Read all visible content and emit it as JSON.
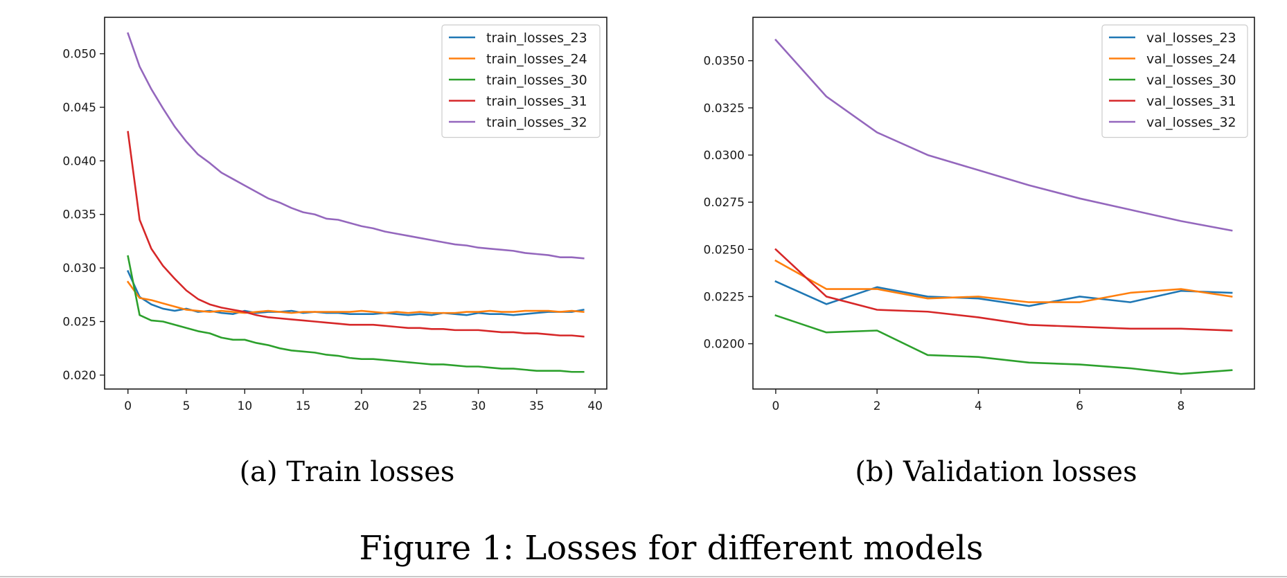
{
  "figure": {
    "caption": "Figure 1: Losses for different models"
  },
  "chart_data": [
    {
      "type": "line",
      "caption": "(a) Train losses",
      "title": "",
      "xlabel": "",
      "ylabel": "",
      "xlim": [
        -2,
        41
      ],
      "ylim": [
        0.0187,
        0.0534
      ],
      "xticks": [
        0,
        5,
        10,
        15,
        20,
        25,
        30,
        35,
        40
      ],
      "xtick_labels": [
        "0",
        "5",
        "10",
        "15",
        "20",
        "25",
        "30",
        "35",
        "40"
      ],
      "yticks": [
        0.02,
        0.025,
        0.03,
        0.035,
        0.04,
        0.045,
        0.05
      ],
      "ytick_labels": [
        "0.020",
        "0.025",
        "0.030",
        "0.035",
        "0.040",
        "0.045",
        "0.050"
      ],
      "grid": false,
      "legend": "top-right",
      "x": [
        0,
        1,
        2,
        3,
        4,
        5,
        6,
        7,
        8,
        9,
        10,
        11,
        12,
        13,
        14,
        15,
        16,
        17,
        18,
        19,
        20,
        21,
        22,
        23,
        24,
        25,
        26,
        27,
        28,
        29,
        30,
        31,
        32,
        33,
        34,
        35,
        36,
        37,
        38,
        39
      ],
      "series": [
        {
          "name": "train_losses_23",
          "color": "#1f77b4",
          "values": [
            0.0297,
            0.0273,
            0.0266,
            0.0262,
            0.026,
            0.0262,
            0.0259,
            0.026,
            0.0258,
            0.0257,
            0.026,
            0.0258,
            0.0259,
            0.0259,
            0.026,
            0.0258,
            0.0259,
            0.0258,
            0.0258,
            0.0257,
            0.0257,
            0.0257,
            0.0258,
            0.0257,
            0.0256,
            0.0257,
            0.0256,
            0.0258,
            0.0257,
            0.0256,
            0.0258,
            0.0257,
            0.0257,
            0.0256,
            0.0257,
            0.0258,
            0.0259,
            0.0259,
            0.0259,
            0.0261
          ]
        },
        {
          "name": "train_losses_24",
          "color": "#ff7f0e",
          "values": [
            0.0287,
            0.0272,
            0.027,
            0.0267,
            0.0264,
            0.0261,
            0.026,
            0.0259,
            0.026,
            0.0259,
            0.0258,
            0.0259,
            0.026,
            0.0259,
            0.0258,
            0.0259,
            0.0259,
            0.0259,
            0.0259,
            0.0259,
            0.026,
            0.0259,
            0.0258,
            0.0259,
            0.0258,
            0.0259,
            0.0258,
            0.0258,
            0.0258,
            0.0259,
            0.0259,
            0.026,
            0.0259,
            0.0259,
            0.026,
            0.026,
            0.026,
            0.0259,
            0.026,
            0.0259
          ]
        },
        {
          "name": "train_losses_30",
          "color": "#2ca02c",
          "values": [
            0.0311,
            0.0256,
            0.0251,
            0.025,
            0.0247,
            0.0244,
            0.0241,
            0.0239,
            0.0235,
            0.0233,
            0.0233,
            0.023,
            0.0228,
            0.0225,
            0.0223,
            0.0222,
            0.0221,
            0.0219,
            0.0218,
            0.0216,
            0.0215,
            0.0215,
            0.0214,
            0.0213,
            0.0212,
            0.0211,
            0.021,
            0.021,
            0.0209,
            0.0208,
            0.0208,
            0.0207,
            0.0206,
            0.0206,
            0.0205,
            0.0204,
            0.0204,
            0.0204,
            0.0203,
            0.0203
          ]
        },
        {
          "name": "train_losses_31",
          "color": "#d62728",
          "values": [
            0.0427,
            0.0345,
            0.0318,
            0.0302,
            0.029,
            0.0279,
            0.0271,
            0.0266,
            0.0263,
            0.0261,
            0.0259,
            0.0256,
            0.0254,
            0.0253,
            0.0252,
            0.0251,
            0.025,
            0.0249,
            0.0248,
            0.0247,
            0.0247,
            0.0247,
            0.0246,
            0.0245,
            0.0244,
            0.0244,
            0.0243,
            0.0243,
            0.0242,
            0.0242,
            0.0242,
            0.0241,
            0.024,
            0.024,
            0.0239,
            0.0239,
            0.0238,
            0.0237,
            0.0237,
            0.0236
          ]
        },
        {
          "name": "train_losses_32",
          "color": "#9467bd",
          "values": [
            0.0519,
            0.0488,
            0.0467,
            0.0449,
            0.0432,
            0.0418,
            0.0406,
            0.0398,
            0.0389,
            0.0383,
            0.0377,
            0.0371,
            0.0365,
            0.0361,
            0.0356,
            0.0352,
            0.035,
            0.0346,
            0.0345,
            0.0342,
            0.0339,
            0.0337,
            0.0334,
            0.0332,
            0.033,
            0.0328,
            0.0326,
            0.0324,
            0.0322,
            0.0321,
            0.0319,
            0.0318,
            0.0317,
            0.0316,
            0.0314,
            0.0313,
            0.0312,
            0.031,
            0.031,
            0.0309
          ]
        }
      ]
    },
    {
      "type": "line",
      "caption": "(b) Validation losses",
      "title": "",
      "xlabel": "",
      "ylabel": "",
      "xlim": [
        -0.45,
        9.45
      ],
      "ylim": [
        0.0176,
        0.0373
      ],
      "xticks": [
        0,
        2,
        4,
        6,
        8
      ],
      "xtick_labels": [
        "0",
        "2",
        "4",
        "6",
        "8"
      ],
      "yticks": [
        0.02,
        0.0225,
        0.025,
        0.0275,
        0.03,
        0.0325,
        0.035
      ],
      "ytick_labels": [
        "0.0200",
        "0.0225",
        "0.0250",
        "0.0275",
        "0.0300",
        "0.0325",
        "0.0350"
      ],
      "grid": false,
      "legend": "top-right",
      "x": [
        0,
        1,
        2,
        3,
        4,
        5,
        6,
        7,
        8,
        9
      ],
      "series": [
        {
          "name": "val_losses_23",
          "color": "#1f77b4",
          "values": [
            0.0233,
            0.0221,
            0.023,
            0.0225,
            0.0224,
            0.022,
            0.0225,
            0.0222,
            0.0228,
            0.0227
          ]
        },
        {
          "name": "val_losses_24",
          "color": "#ff7f0e",
          "values": [
            0.0244,
            0.0229,
            0.0229,
            0.0224,
            0.0225,
            0.0222,
            0.0222,
            0.0227,
            0.0229,
            0.0225
          ]
        },
        {
          "name": "val_losses_30",
          "color": "#2ca02c",
          "values": [
            0.0215,
            0.0206,
            0.0207,
            0.0194,
            0.0193,
            0.019,
            0.0189,
            0.0187,
            0.0184,
            0.0186
          ]
        },
        {
          "name": "val_losses_31",
          "color": "#d62728",
          "values": [
            0.025,
            0.0225,
            0.0218,
            0.0217,
            0.0214,
            0.021,
            0.0209,
            0.0208,
            0.0208,
            0.0207
          ]
        },
        {
          "name": "val_losses_32",
          "color": "#9467bd",
          "values": [
            0.0361,
            0.0331,
            0.0312,
            0.03,
            0.0292,
            0.0284,
            0.0277,
            0.0271,
            0.0265,
            0.026
          ]
        }
      ]
    }
  ]
}
